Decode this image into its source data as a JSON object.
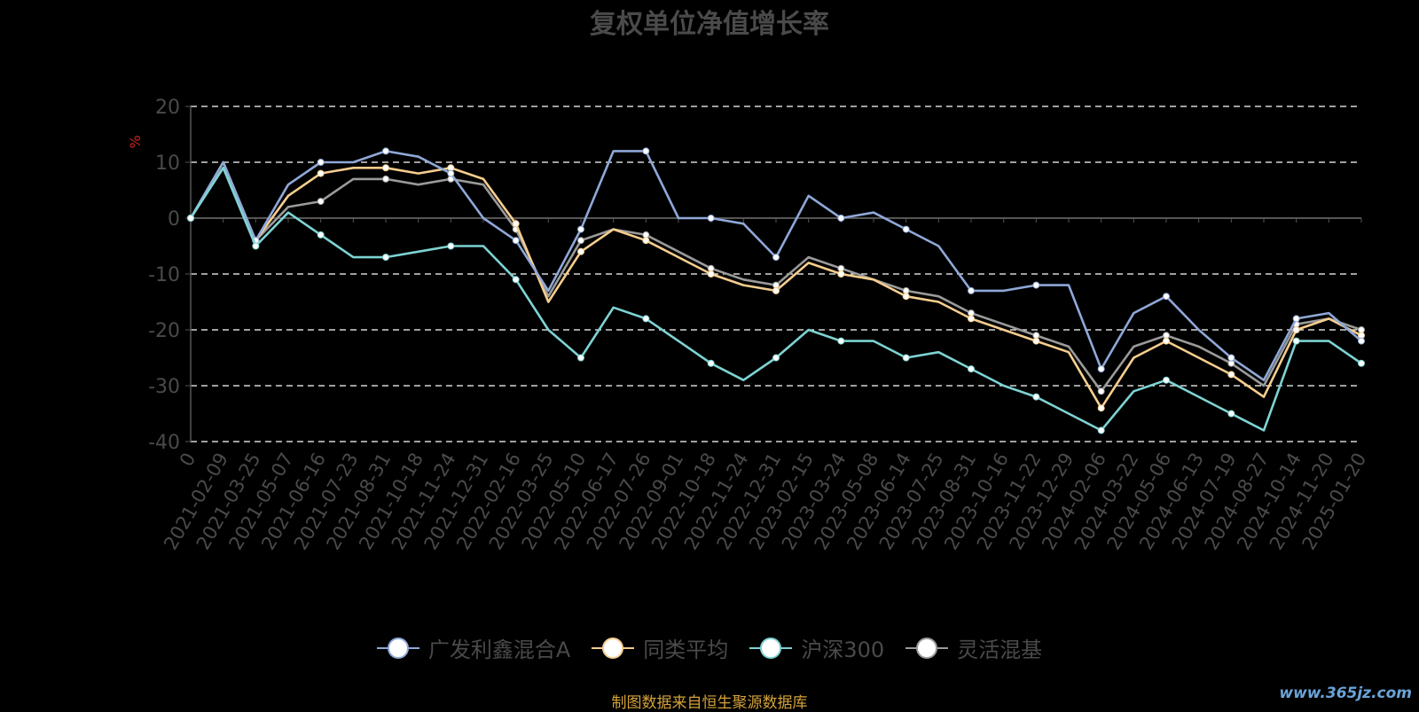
{
  "chart_data": {
    "type": "line",
    "title": "复权单位净值增长率",
    "ylabel": "%",
    "ylim": [
      -40,
      20
    ],
    "yticks": [
      20,
      10,
      0,
      -10,
      -20,
      -30,
      -40
    ],
    "grid": true,
    "legend_position": "bottom",
    "xticks": [
      "0",
      "2021-02-09",
      "2021-03-25",
      "2021-05-07",
      "2021-06-16",
      "2021-07-23",
      "2021-08-31",
      "2021-10-18",
      "2021-11-24",
      "2021-12-31",
      "2022-02-16",
      "2022-03-25",
      "2022-05-10",
      "2022-06-17",
      "2022-07-26",
      "2022-09-01",
      "2022-10-18",
      "2022-11-24",
      "2022-12-31",
      "2023-02-15",
      "2023-03-24",
      "2023-05-08",
      "2023-06-14",
      "2023-07-25",
      "2023-08-31",
      "2023-10-16",
      "2023-11-22",
      "2023-12-29",
      "2024-02-06",
      "2024-03-22",
      "2024-05-06",
      "2024-06-13",
      "2024-07-19",
      "2024-08-27",
      "2024-10-14",
      "2024-11-20",
      "2025-01-20"
    ],
    "series": [
      {
        "name": "广发利鑫混合A",
        "color": "#8fa8d8",
        "values": [
          0,
          10,
          -4,
          6,
          10,
          10,
          12,
          11,
          8,
          0,
          -4,
          -13,
          -2,
          12,
          12,
          0,
          0,
          -1,
          -7,
          4,
          0,
          1,
          -2,
          -5,
          -13,
          -13,
          -12,
          -12,
          -27,
          -17,
          -14,
          -20,
          -25,
          -29,
          -18,
          -17,
          -22
        ]
      },
      {
        "name": "同类平均",
        "color": "#f6cd8e",
        "values": [
          0,
          10,
          -4,
          4,
          8,
          9,
          9,
          8,
          9,
          7,
          -1,
          -15,
          -6,
          -2,
          -4,
          -7,
          -10,
          -12,
          -13,
          -8,
          -10,
          -11,
          -14,
          -15,
          -18,
          -20,
          -22,
          -24,
          -34,
          -25,
          -22,
          -25,
          -28,
          -32,
          -20,
          -18,
          -21
        ]
      },
      {
        "name": "沪深300",
        "color": "#7ed3d3",
        "values": [
          0,
          9,
          -5,
          1,
          -3,
          -7,
          -7,
          -6,
          -5,
          -5,
          -11,
          -20,
          -25,
          -16,
          -18,
          -22,
          -26,
          -29,
          -25,
          -20,
          -22,
          -22,
          -25,
          -24,
          -27,
          -30,
          -32,
          -35,
          -38,
          -31,
          -29,
          -32,
          -35,
          -38,
          -22,
          -22,
          -26
        ]
      },
      {
        "name": "灵活混基",
        "color": "#9a9a9a",
        "values": [
          0,
          9,
          -4,
          2,
          3,
          7,
          7,
          6,
          7,
          6,
          -2,
          -14,
          -4,
          -2,
          -3,
          -6,
          -9,
          -11,
          -12,
          -7,
          -9,
          -11,
          -13,
          -14,
          -17,
          -19,
          -21,
          -23,
          -31,
          -23,
          -21,
          -23,
          -26,
          -30,
          -19,
          -18,
          -20
        ]
      }
    ]
  },
  "footer": "制图数据来自恒生聚源数据库",
  "watermark": "www.365jz.com"
}
